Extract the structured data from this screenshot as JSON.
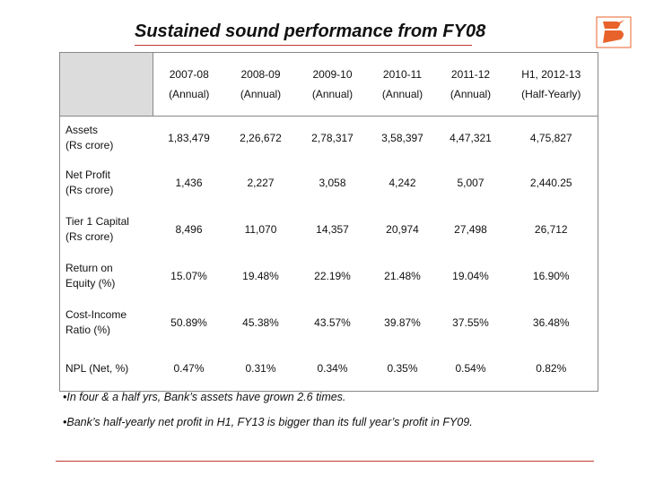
{
  "title": "Sustained sound performance from FY08",
  "table": {
    "columns": [
      {
        "line1": "2007-08",
        "line2": "(Annual)"
      },
      {
        "line1": "2008-09",
        "line2": "(Annual)"
      },
      {
        "line1": "2009-10",
        "line2": "(Annual)"
      },
      {
        "line1": "2010-11",
        "line2": "(Annual)"
      },
      {
        "line1": "2011-12",
        "line2": "(Annual)"
      },
      {
        "line1": "H1, 2012-13",
        "line2": "(Half-Yearly)"
      }
    ],
    "rows": [
      {
        "line1": "Assets",
        "line2": "(Rs crore)",
        "values": [
          "1,83,479",
          "2,26,672",
          "2,78,317",
          "3,58,397",
          "4,47,321",
          "4,75,827"
        ]
      },
      {
        "line1": "Net Profit",
        "line2": "(Rs crore)",
        "values": [
          "1,436",
          "2,227",
          "3,058",
          "4,242",
          "5,007",
          "2,440.25"
        ]
      },
      {
        "line1": "Tier 1 Capital",
        "line2": "(Rs crore)",
        "values": [
          "8,496",
          "11,070",
          "14,357",
          "20,974",
          "27,498",
          "26,712"
        ]
      },
      {
        "line1": "Return on",
        "line2": "Equity (%)",
        "values": [
          "15.07%",
          "19.48%",
          "22.19%",
          "21.48%",
          "19.04%",
          "16.90%"
        ]
      },
      {
        "line1": "Cost-Income",
        "line2": "Ratio (%)",
        "values": [
          "50.89%",
          "45.38%",
          "43.57%",
          "39.87%",
          "37.55%",
          "36.48%"
        ]
      },
      {
        "line1": "NPL (Net, %)",
        "line2": "",
        "values": [
          "0.47%",
          "0.31%",
          "0.34%",
          "0.35%",
          "0.54%",
          "0.82%"
        ]
      }
    ]
  },
  "bullets": [
    "•In four & a half yrs, Bank’s assets have grown 2.6 times.",
    "•Bank’s half-yearly net profit in H1, FY13 is bigger than its full year’s profit in FY09."
  ],
  "colors": {
    "accent": "#c0392b",
    "header_fill": "#dcdcdc",
    "logo": "#e8632b"
  },
  "logo_icon": "bank-of-baroda-logo-icon"
}
